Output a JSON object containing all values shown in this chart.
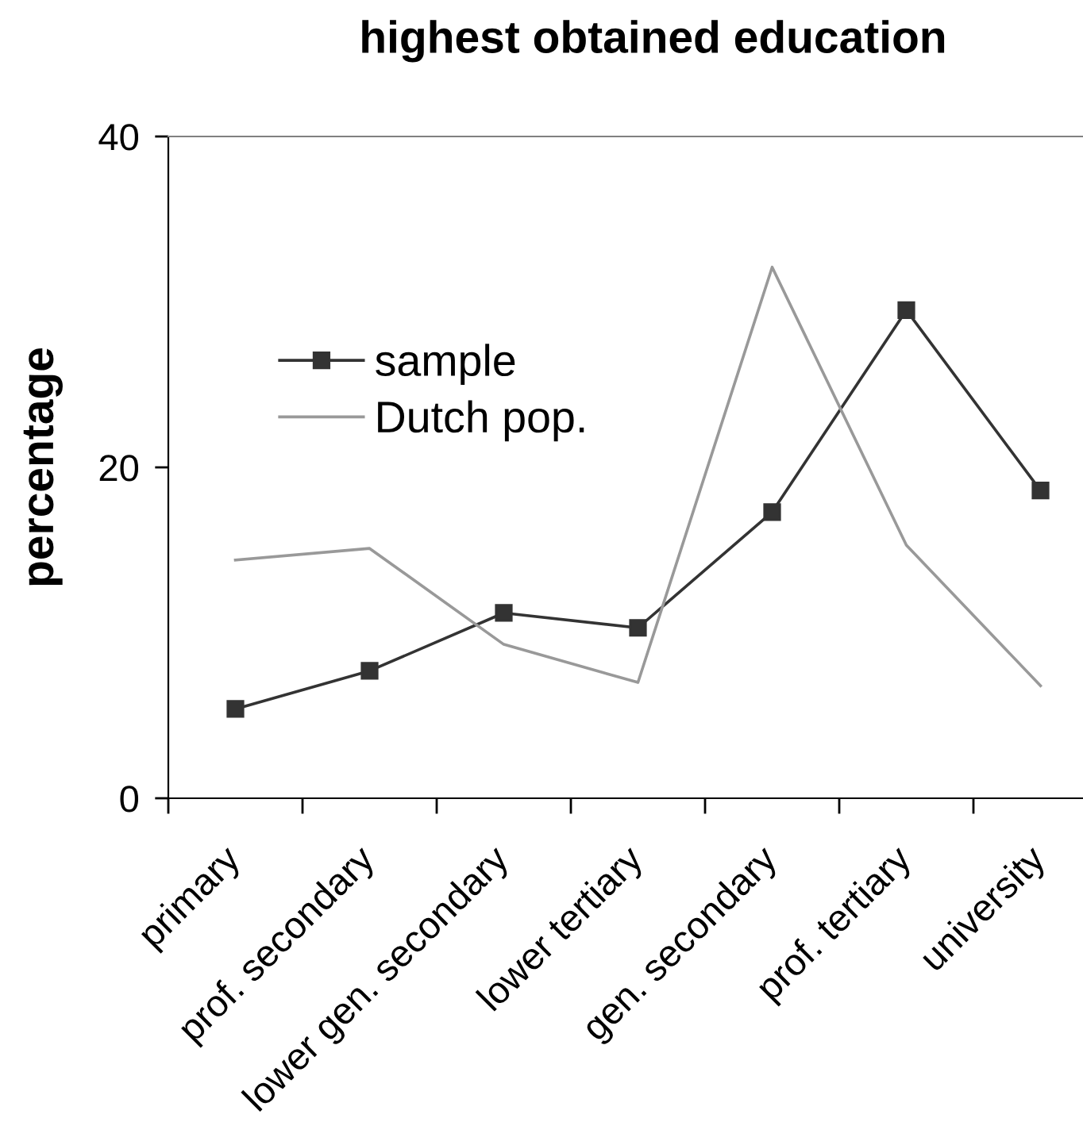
{
  "chart_data": {
    "type": "line",
    "title": "highest obtained education",
    "ylabel": "percentage",
    "categories": [
      "primary",
      "prof. secondary",
      "lower gen. secondary",
      "lower tertiary",
      "gen. secondary",
      "prof. tertiary",
      "university"
    ],
    "series": [
      {
        "name": "sample",
        "color": "#333333",
        "marker": "square",
        "values": [
          5.4,
          7.7,
          11.2,
          10.3,
          17.3,
          29.5,
          18.6
        ]
      },
      {
        "name": "Dutch pop.",
        "color": "#999999",
        "marker": "none",
        "values": [
          14.4,
          15.1,
          9.3,
          7.0,
          32.1,
          15.3,
          6.8
        ]
      }
    ],
    "ylim": [
      0,
      40
    ],
    "yticks": [
      0,
      20,
      40
    ],
    "legend": "top left"
  }
}
